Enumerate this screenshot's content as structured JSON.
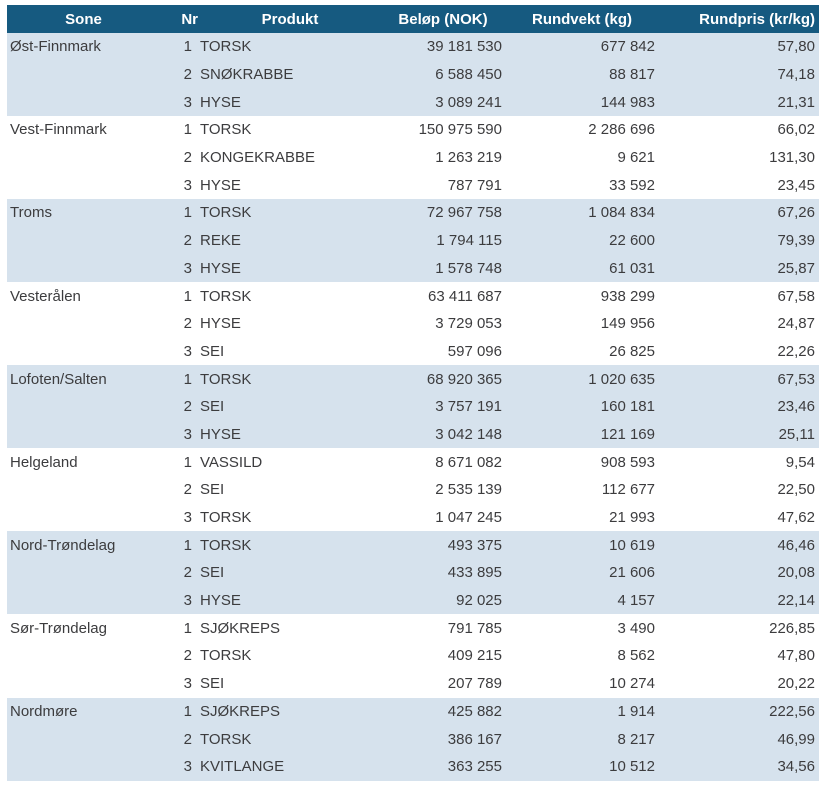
{
  "colors": {
    "header_bg": "#165A80",
    "header_text": "#FFFFFF",
    "stripe_bg": "#D6E2ED",
    "row_bg": "#FFFFFF",
    "body_text": "#3C3C3E"
  },
  "chart_data": {
    "type": "table",
    "columns": [
      "Sone",
      "Nr",
      "Produkt",
      "Beløp (NOK)",
      "Rundvekt (kg)",
      "Rundpris (kr/kg)"
    ],
    "layout": {
      "group_striping": "alternating groups of 3 rows, first group shaded light blue",
      "zone_label_shown_on_first_row_only": true
    },
    "groups": [
      {
        "sone": "Øst-Finnmark",
        "rows": [
          {
            "nr": "1",
            "produkt": "TORSK",
            "belop": "39 181 530",
            "rundvekt": "677 842",
            "rundpris": "57,80"
          },
          {
            "nr": "2",
            "produkt": "SNØKRABBE",
            "belop": "6 588 450",
            "rundvekt": "88 817",
            "rundpris": "74,18"
          },
          {
            "nr": "3",
            "produkt": "HYSE",
            "belop": "3 089 241",
            "rundvekt": "144 983",
            "rundpris": "21,31"
          }
        ]
      },
      {
        "sone": "Vest-Finnmark",
        "rows": [
          {
            "nr": "1",
            "produkt": "TORSK",
            "belop": "150 975 590",
            "rundvekt": "2 286 696",
            "rundpris": "66,02"
          },
          {
            "nr": "2",
            "produkt": "KONGEKRABBE",
            "belop": "1 263 219",
            "rundvekt": "9 621",
            "rundpris": "131,30"
          },
          {
            "nr": "3",
            "produkt": "HYSE",
            "belop": "787 791",
            "rundvekt": "33 592",
            "rundpris": "23,45"
          }
        ]
      },
      {
        "sone": "Troms",
        "rows": [
          {
            "nr": "1",
            "produkt": "TORSK",
            "belop": "72 967 758",
            "rundvekt": "1 084 834",
            "rundpris": "67,26"
          },
          {
            "nr": "2",
            "produkt": "REKE",
            "belop": "1 794 115",
            "rundvekt": "22 600",
            "rundpris": "79,39"
          },
          {
            "nr": "3",
            "produkt": "HYSE",
            "belop": "1 578 748",
            "rundvekt": "61 031",
            "rundpris": "25,87"
          }
        ]
      },
      {
        "sone": "Vesterålen",
        "rows": [
          {
            "nr": "1",
            "produkt": "TORSK",
            "belop": "63 411 687",
            "rundvekt": "938 299",
            "rundpris": "67,58"
          },
          {
            "nr": "2",
            "produkt": "HYSE",
            "belop": "3 729 053",
            "rundvekt": "149 956",
            "rundpris": "24,87"
          },
          {
            "nr": "3",
            "produkt": "SEI",
            "belop": "597 096",
            "rundvekt": "26 825",
            "rundpris": "22,26"
          }
        ]
      },
      {
        "sone": "Lofoten/Salten",
        "rows": [
          {
            "nr": "1",
            "produkt": "TORSK",
            "belop": "68 920 365",
            "rundvekt": "1 020 635",
            "rundpris": "67,53"
          },
          {
            "nr": "2",
            "produkt": "SEI",
            "belop": "3 757 191",
            "rundvekt": "160 181",
            "rundpris": "23,46"
          },
          {
            "nr": "3",
            "produkt": "HYSE",
            "belop": "3 042 148",
            "rundvekt": "121 169",
            "rundpris": "25,11"
          }
        ]
      },
      {
        "sone": "Helgeland",
        "rows": [
          {
            "nr": "1",
            "produkt": "VASSILD",
            "belop": "8 671 082",
            "rundvekt": "908 593",
            "rundpris": "9,54"
          },
          {
            "nr": "2",
            "produkt": "SEI",
            "belop": "2 535 139",
            "rundvekt": "112 677",
            "rundpris": "22,50"
          },
          {
            "nr": "3",
            "produkt": "TORSK",
            "belop": "1 047 245",
            "rundvekt": "21 993",
            "rundpris": "47,62"
          }
        ]
      },
      {
        "sone": "Nord-Trøndelag",
        "rows": [
          {
            "nr": "1",
            "produkt": "TORSK",
            "belop": "493 375",
            "rundvekt": "10 619",
            "rundpris": "46,46"
          },
          {
            "nr": "2",
            "produkt": "SEI",
            "belop": "433 895",
            "rundvekt": "21 606",
            "rundpris": "20,08"
          },
          {
            "nr": "3",
            "produkt": "HYSE",
            "belop": "92 025",
            "rundvekt": "4 157",
            "rundpris": "22,14"
          }
        ]
      },
      {
        "sone": "Sør-Trøndelag",
        "rows": [
          {
            "nr": "1",
            "produkt": "SJØKREPS",
            "belop": "791 785",
            "rundvekt": "3 490",
            "rundpris": "226,85"
          },
          {
            "nr": "2",
            "produkt": "TORSK",
            "belop": "409 215",
            "rundvekt": "8 562",
            "rundpris": "47,80"
          },
          {
            "nr": "3",
            "produkt": "SEI",
            "belop": "207 789",
            "rundvekt": "10 274",
            "rundpris": "20,22"
          }
        ]
      },
      {
        "sone": "Nordmøre",
        "rows": [
          {
            "nr": "1",
            "produkt": "SJØKREPS",
            "belop": "425 882",
            "rundvekt": "1 914",
            "rundpris": "222,56"
          },
          {
            "nr": "2",
            "produkt": "TORSK",
            "belop": "386 167",
            "rundvekt": "8 217",
            "rundpris": "46,99"
          },
          {
            "nr": "3",
            "produkt": "KVITLANGE",
            "belop": "363 255",
            "rundvekt": "10 512",
            "rundpris": "34,56"
          }
        ]
      }
    ]
  }
}
